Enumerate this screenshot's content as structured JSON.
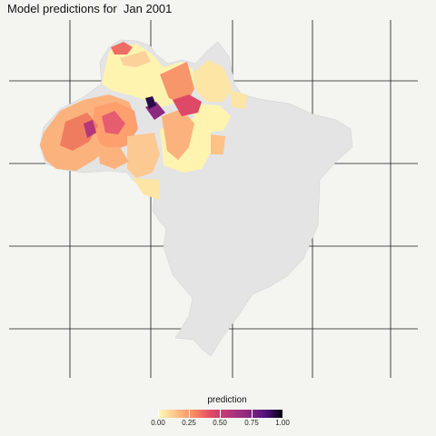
{
  "title": "Model predictions for  Jan 2001",
  "legend": {
    "title": "prediction",
    "ticks": [
      "0.00",
      "0.25",
      "0.50",
      "0.75",
      "1.00"
    ],
    "range": [
      0,
      1
    ],
    "palette": [
      "#fcfdbf",
      "#fec287",
      "#fb8861",
      "#de4968",
      "#b5367a",
      "#8c2981",
      "#51127c",
      "#000004"
    ]
  },
  "colors": {
    "background": "#f4f4f0",
    "land_no_data": "#e4e4e4",
    "gridline": "#1a1a1a"
  },
  "map": {
    "country": "Brazil",
    "value_range_shown": [
      0,
      1
    ],
    "graticule": true
  }
}
